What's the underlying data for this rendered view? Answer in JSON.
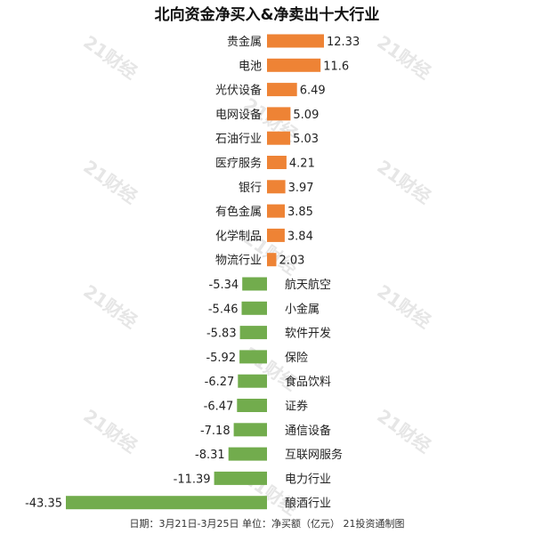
{
  "chart_data": {
    "type": "bar",
    "orientation": "horizontal",
    "title": "北向资金净买入&净卖出十大行业",
    "categories": [
      "贵金属",
      "电池",
      "光伏设备",
      "电网设备",
      "石油行业",
      "医疗服务",
      "银行",
      "有色金属",
      "化学制品",
      "物流行业",
      "航天航空",
      "小金属",
      "软件开发",
      "保险",
      "食品饮料",
      "证券",
      "通信设备",
      "互联网服务",
      "电力行业",
      "酿酒行业"
    ],
    "values": [
      12.33,
      11.6,
      6.49,
      5.09,
      5.03,
      4.21,
      3.97,
      3.85,
      3.84,
      2.03,
      -5.34,
      -5.46,
      -5.83,
      -5.92,
      -6.27,
      -6.47,
      -7.18,
      -8.31,
      -11.39,
      -43.35
    ],
    "value_labels": [
      "12.33",
      "11.6",
      "6.49",
      "5.09",
      "5.03",
      "4.21",
      "3.97",
      "3.85",
      "3.84",
      "2.03",
      "-5.34",
      "-5.46",
      "-5.83",
      "-5.92",
      "-6.27",
      "-6.47",
      "-7.18",
      "-8.31",
      "-11.39",
      "-43.35"
    ],
    "colors": {
      "positive": "#ee8335",
      "negative": "#72ac4d"
    },
    "grid": false,
    "legend": "none"
  },
  "watermark_text": "21财经",
  "footer": "日期：3月21日-3月25日 单位：净买额（亿元） 21投资通制图"
}
